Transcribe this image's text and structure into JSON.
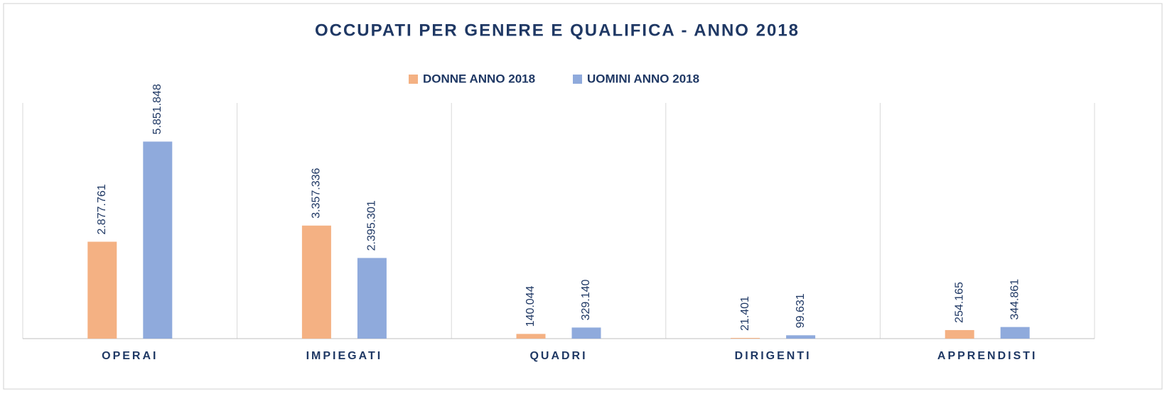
{
  "chart_data": {
    "type": "bar",
    "title": "OCCUPATI PER GENERE E QUALIFICA - ANNO 2018",
    "categories": [
      "OPERAI",
      "IMPIEGATI",
      "QUADRI",
      "DIRIGENTI",
      "APPRENDISTI"
    ],
    "series": [
      {
        "name": "DONNE ANNO 2018",
        "color": "#f4b183",
        "values": [
          2877761,
          3357336,
          140044,
          21401,
          254165
        ],
        "value_labels": [
          "2.877.761",
          "3.357.336",
          "140.044",
          "21.401",
          "254.165"
        ]
      },
      {
        "name": "UOMINI ANNO 2018",
        "color": "#8faadc",
        "values": [
          5851848,
          2395301,
          329140,
          99631,
          344861
        ],
        "value_labels": [
          "5.851.848",
          "2.395.301",
          "329.140",
          "99.631",
          "344.861"
        ]
      }
    ],
    "ylim": [
      0,
      7000000
    ],
    "legend": "top"
  }
}
